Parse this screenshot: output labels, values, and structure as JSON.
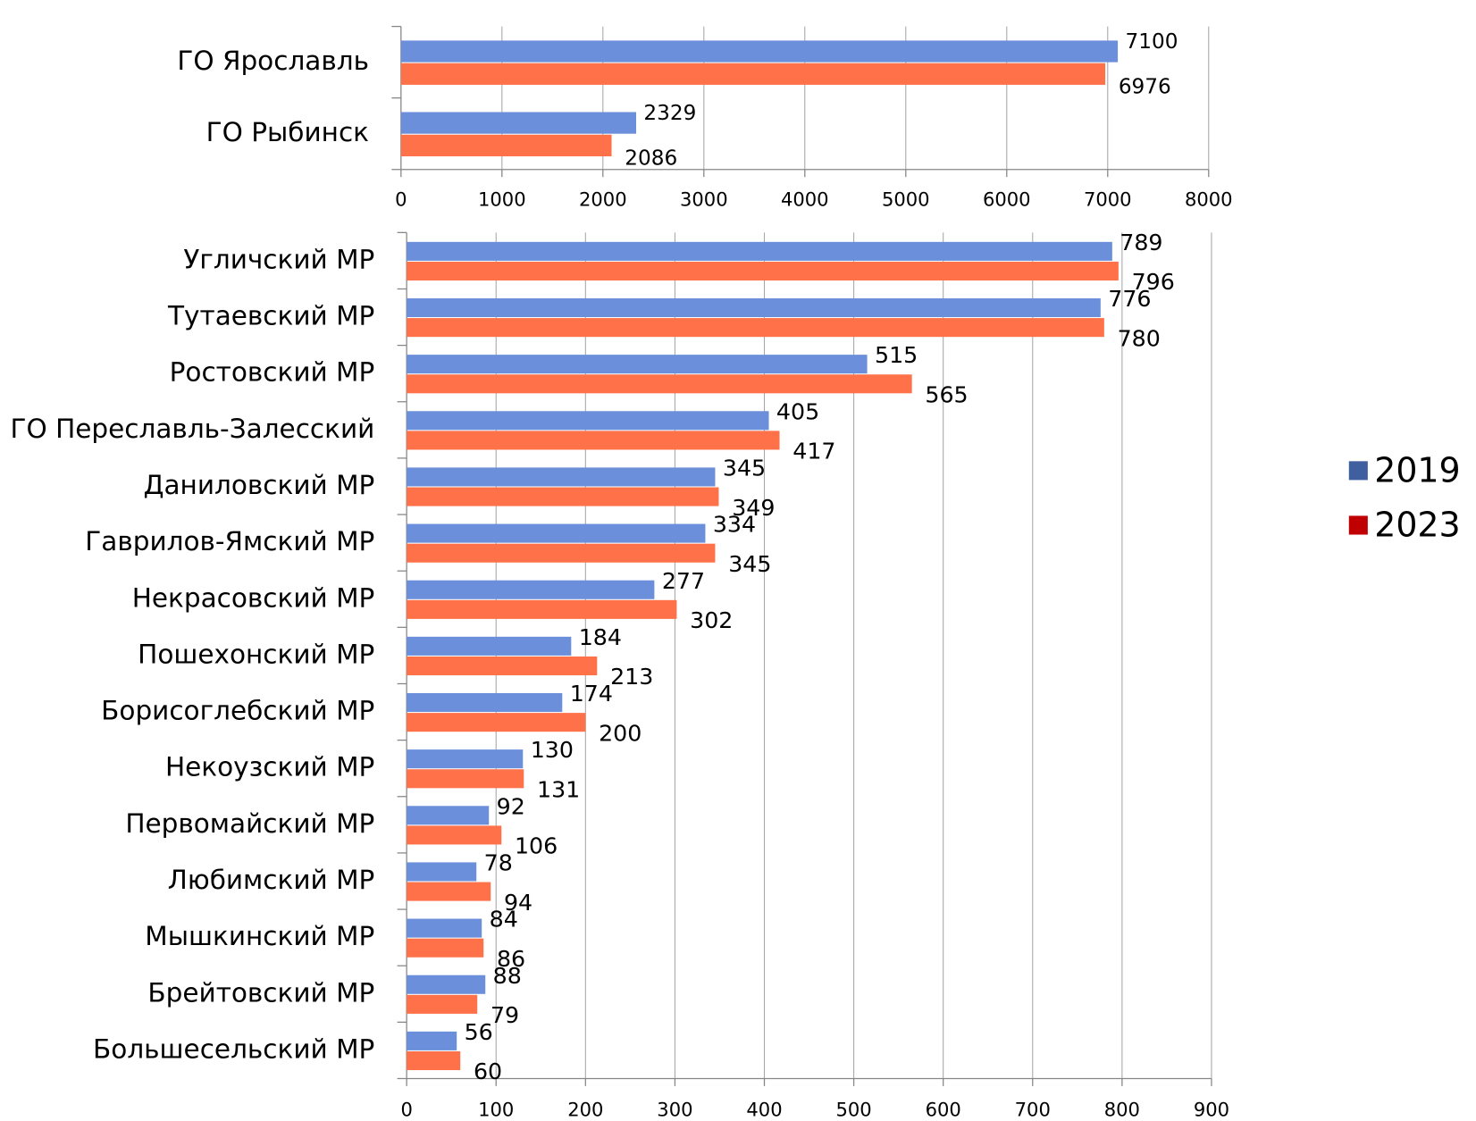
{
  "chart_data": [
    {
      "type": "bar",
      "orientation": "horizontal",
      "categories": [
        "ГО Ярославль",
        "ГО Рыбинск"
      ],
      "series": [
        {
          "color": "#6c8fdb",
          "label_color": "#3f5f9f",
          "values": [
            7100,
            2329
          ]
        },
        {
          "color": "#ff7148",
          "label_color": "#e00000",
          "values": [
            6976,
            2086
          ]
        }
      ],
      "xlim": [
        0,
        8000
      ],
      "xticks": [
        0,
        1000,
        2000,
        3000,
        4000,
        5000,
        6000,
        7000,
        8000
      ],
      "grid": true
    },
    {
      "type": "bar",
      "orientation": "horizontal",
      "categories": [
        "Угличский МР",
        "Тутаевский МР",
        "Ростовский МР",
        "ГО Переславль-Залесский",
        "Даниловский МР",
        "Гаврилов-Ямский МР",
        "Некрасовский МР",
        "Пошехонский МР",
        "Борисоглебский МР",
        "Некоузский МР",
        "Первомайский МР",
        "Любимский МР",
        "Мышкинский МР",
        "Брейтовский МР",
        "Большесельский МР"
      ],
      "series": [
        {
          "name": "2019",
          "color": "#6c8fdb",
          "label_color": "#3f5f9f",
          "values": [
            789,
            776,
            515,
            405,
            345,
            334,
            277,
            184,
            174,
            130,
            92,
            78,
            84,
            88,
            56
          ]
        },
        {
          "name": "2023",
          "color": "#ff7148",
          "label_color": "#c00000",
          "values": [
            796,
            780,
            565,
            417,
            349,
            345,
            302,
            213,
            200,
            131,
            106,
            94,
            86,
            79,
            60
          ]
        }
      ],
      "xlim": [
        0,
        900
      ],
      "xticks": [
        0,
        100,
        200,
        300,
        400,
        500,
        600,
        700,
        800,
        900
      ],
      "grid": true,
      "legend": "right"
    }
  ]
}
